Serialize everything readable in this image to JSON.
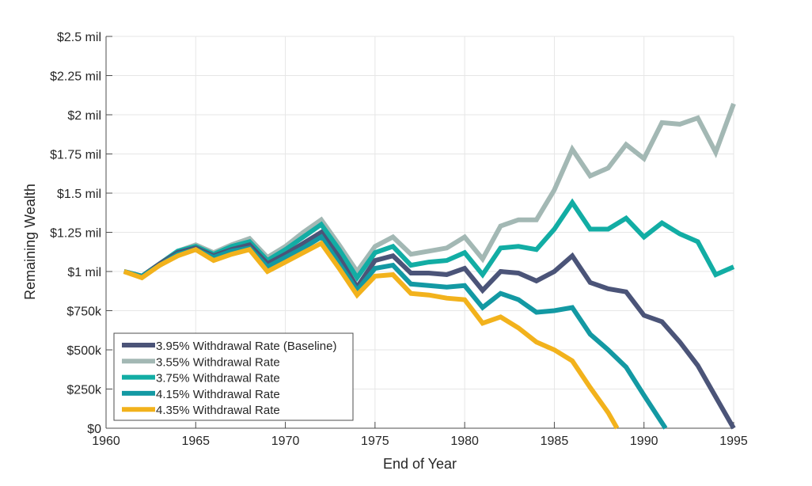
{
  "chart_data": {
    "type": "line",
    "title": "",
    "xlabel": "End of Year",
    "ylabel": "Remaining Wealth",
    "xlim": [
      1960,
      1995
    ],
    "ylim": [
      0,
      2500000
    ],
    "grid": true,
    "legend_position": "bottom-left",
    "x_ticks": [
      1960,
      1965,
      1970,
      1975,
      1980,
      1985,
      1990,
      1995
    ],
    "x_tick_labels": [
      "1960",
      "1965",
      "1970",
      "1975",
      "1980",
      "1985",
      "1990",
      "1995"
    ],
    "y_ticks": [
      0,
      250000,
      500000,
      750000,
      1000000,
      1250000,
      1500000,
      1750000,
      2000000,
      2250000,
      2500000
    ],
    "y_tick_labels": [
      "$0",
      "$250k",
      "$500k",
      "$750k",
      "$1 mil",
      "$1.25 mil",
      "$1.5 mil",
      "$1.75 mil",
      "$2 mil",
      "$2.25 mil",
      "$2.5 mil"
    ],
    "series": [
      {
        "name": "3.55% Withdrawal Rate",
        "color": "#a3b8b4",
        "x": [
          1961,
          1962,
          1963,
          1964,
          1965,
          1966,
          1967,
          1968,
          1969,
          1970,
          1971,
          1972,
          1973,
          1974,
          1975,
          1976,
          1977,
          1978,
          1979,
          1980,
          1981,
          1982,
          1983,
          1984,
          1985,
          1986,
          1987,
          1988,
          1989,
          1990,
          1991,
          1992,
          1993,
          1994,
          1995
        ],
        "values": [
          1000000,
          970000,
          1050000,
          1130000,
          1170000,
          1120000,
          1170000,
          1210000,
          1090000,
          1160000,
          1250000,
          1330000,
          1170000,
          1000000,
          1160000,
          1220000,
          1110000,
          1130000,
          1150000,
          1220000,
          1080000,
          1290000,
          1330000,
          1330000,
          1520000,
          1780000,
          1610000,
          1660000,
          1810000,
          1720000,
          1950000,
          1940000,
          1980000,
          1760000,
          2070000
        ]
      },
      {
        "name": "3.75% Withdrawal Rate",
        "color": "#12ada4",
        "x": [
          1961,
          1962,
          1963,
          1964,
          1965,
          1966,
          1967,
          1968,
          1969,
          1970,
          1971,
          1972,
          1973,
          1974,
          1975,
          1976,
          1977,
          1978,
          1979,
          1980,
          1981,
          1982,
          1983,
          1984,
          1985,
          1986,
          1987,
          1988,
          1989,
          1990,
          1991,
          1992,
          1993,
          1994,
          1995
        ],
        "values": [
          1000000,
          970000,
          1050000,
          1130000,
          1160000,
          1110000,
          1160000,
          1190000,
          1070000,
          1140000,
          1220000,
          1300000,
          1140000,
          960000,
          1120000,
          1160000,
          1040000,
          1060000,
          1070000,
          1120000,
          980000,
          1150000,
          1160000,
          1140000,
          1270000,
          1440000,
          1270000,
          1270000,
          1340000,
          1220000,
          1310000,
          1240000,
          1190000,
          980000,
          1030000
        ]
      },
      {
        "name": "3.95% Withdrawal Rate (Baseline)",
        "color": "#4b5478",
        "x": [
          1961,
          1962,
          1963,
          1964,
          1965,
          1966,
          1967,
          1968,
          1969,
          1970,
          1971,
          1972,
          1973,
          1974,
          1975,
          1976,
          1977,
          1978,
          1979,
          1980,
          1981,
          1982,
          1983,
          1984,
          1985,
          1986,
          1987,
          1988,
          1989,
          1990,
          1991,
          1992,
          1993,
          1994,
          1995
        ],
        "values": [
          1000000,
          970000,
          1050000,
          1120000,
          1150000,
          1100000,
          1140000,
          1170000,
          1050000,
          1110000,
          1180000,
          1250000,
          1090000,
          900000,
          1070000,
          1100000,
          990000,
          990000,
          980000,
          1020000,
          880000,
          1000000,
          990000,
          940000,
          1000000,
          1100000,
          930000,
          890000,
          870000,
          720000,
          680000,
          550000,
          400000,
          200000,
          0
        ]
      },
      {
        "name": "4.15% Withdrawal Rate",
        "color": "#1399a3",
        "x": [
          1961,
          1962,
          1963,
          1964,
          1965,
          1966,
          1967,
          1968,
          1969,
          1970,
          1971,
          1972,
          1973,
          1974,
          1975,
          1976,
          1977,
          1978,
          1979,
          1980,
          1981,
          1982,
          1983,
          1984,
          1985,
          1986,
          1987,
          1988,
          1989,
          1990,
          1991.2
        ],
        "values": [
          1000000,
          970000,
          1040000,
          1110000,
          1140000,
          1090000,
          1130000,
          1150000,
          1030000,
          1090000,
          1150000,
          1220000,
          1050000,
          880000,
          1020000,
          1040000,
          920000,
          910000,
          900000,
          910000,
          770000,
          860000,
          820000,
          740000,
          750000,
          770000,
          600000,
          500000,
          390000,
          210000,
          0
        ]
      },
      {
        "name": "4.35% Withdrawal Rate",
        "color": "#f2b21c",
        "x": [
          1961,
          1962,
          1963,
          1964,
          1965,
          1966,
          1967,
          1968,
          1969,
          1970,
          1971,
          1972,
          1973,
          1974,
          1975,
          1976,
          1977,
          1978,
          1979,
          1980,
          1981,
          1982,
          1983,
          1984,
          1985,
          1986,
          1987,
          1988,
          1988.5
        ],
        "values": [
          1000000,
          960000,
          1040000,
          1100000,
          1140000,
          1070000,
          1110000,
          1140000,
          1000000,
          1060000,
          1120000,
          1180000,
          1020000,
          850000,
          970000,
          980000,
          860000,
          850000,
          830000,
          820000,
          670000,
          710000,
          640000,
          550000,
          500000,
          430000,
          260000,
          100000,
          0
        ]
      }
    ],
    "legend": [
      {
        "label": "3.95% Withdrawal Rate (Baseline)",
        "color": "#4b5478"
      },
      {
        "label": "3.55% Withdrawal Rate",
        "color": "#a3b8b4"
      },
      {
        "label": "3.75% Withdrawal Rate",
        "color": "#12ada4"
      },
      {
        "label": "4.15% Withdrawal Rate",
        "color": "#1399a3"
      },
      {
        "label": "4.35% Withdrawal Rate",
        "color": "#f2b21c"
      }
    ]
  }
}
